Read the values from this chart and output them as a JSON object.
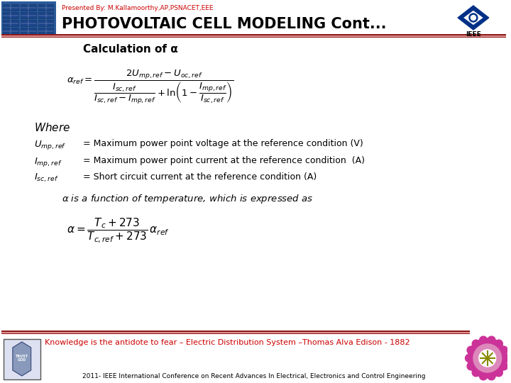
{
  "bg_color": "#ffffff",
  "header_bar_color1": "#8B0000",
  "header_bar_color2": "#cd5c5c",
  "presenter_text": "Presented By: M.Kallamoorthy,AP,PSNACET,EEE",
  "presenter_color": "#cc0000",
  "title_text": "PHOTOVOLTAIC CELL MODELING Cont...",
  "title_color": "#000000",
  "section_title": "Calculation of α",
  "section_title_color": "#000000",
  "quote_text": "Knowledge is the antidote to fear – Electric Distribution System –Thomas Alva Edison - 1882",
  "quote_color": "#cc0000",
  "footer_text": "2011- IEEE International Conference on Recent Advances In Electrical, Electronics and Control Engineering",
  "footer_color": "#000000",
  "def1_right": "= Maximum power point voltage at the reference condition (V)",
  "def2_right": "= Maximum power point current at the reference condition  (A)",
  "def3_right": "= Short circuit current at the reference condition (A)"
}
